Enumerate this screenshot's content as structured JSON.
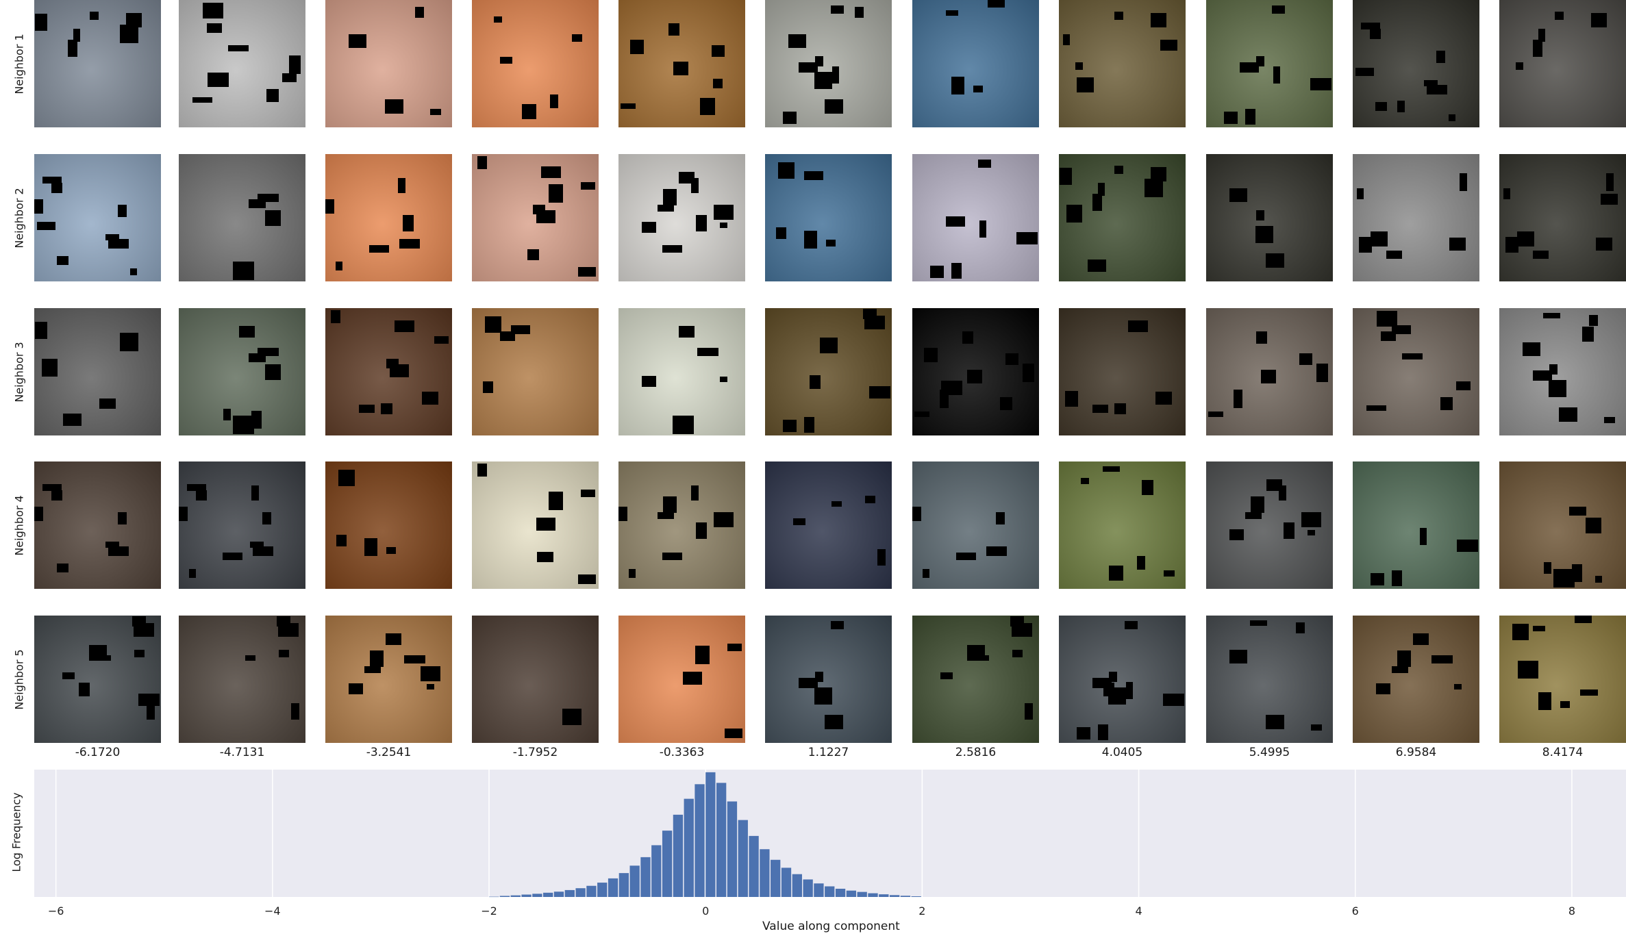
{
  "rows": [
    "Neighbor 1",
    "Neighbor 2",
    "Neighbor 3",
    "Neighbor 4",
    "Neighbor 5"
  ],
  "columns": [
    "-6.1720",
    "-4.7131",
    "-3.2541",
    "-1.7952",
    "-0.3363",
    "1.1227",
    "2.5816",
    "4.0405",
    "5.4995",
    "6.9584",
    "8.4174"
  ],
  "tile_colors": [
    [
      "#7d8896",
      "#bdbdbd",
      "#d9a08a",
      "#e8874f",
      "#a06a2c",
      "#a9aba3",
      "#3f6e96",
      "#6a5b34",
      "#5c6b44",
      "#2f2f28",
      "#4a4844"
    ],
    [
      "#8fa7c2",
      "#6f6f6f",
      "#e8874f",
      "#d9a08a",
      "#d7d5d1",
      "#3f6e96",
      "#b9b4c8",
      "#3b4a2c",
      "#2f2f28",
      "#8a8a8a",
      "#2f2f28"
    ],
    [
      "#5d5d5d",
      "#5e6b5a",
      "#5a3620",
      "#b07a44",
      "#d8dccb",
      "#5e4a22",
      "#000000",
      "#3a2f20",
      "#6d6258",
      "#6d6258",
      "#8a8a8a"
    ],
    [
      "#4e3f35",
      "#3a3e44",
      "#7a3d12",
      "#e5dfc4",
      "#8c8063",
      "#2a3148",
      "#55636b",
      "#6a7a3a",
      "#4d4f50",
      "#4e6a54",
      "#6b5232"
    ],
    [
      "#40464a",
      "#4a4038",
      "#b07a44",
      "#4a3a30",
      "#e8874f",
      "#3d4a55",
      "#3b4a2c",
      "#434a50",
      "#454a4e",
      "#6b5232",
      "#8c7a3c"
    ]
  ],
  "chart_data": {
    "type": "bar",
    "xlabel": "Value along component",
    "ylabel": "Log Frequency",
    "xlim": [
      -6.2,
      8.5
    ],
    "xticks": [
      -6,
      -4,
      -2,
      0,
      2,
      4,
      6,
      8
    ],
    "bar_color": "#4c72b0",
    "grid": true,
    "bins": [
      {
        "x": -1.95,
        "v": 0.1
      },
      {
        "x": -1.85,
        "v": 0.4
      },
      {
        "x": -1.75,
        "v": 0.6
      },
      {
        "x": -1.65,
        "v": 0.9
      },
      {
        "x": -1.55,
        "v": 1.2
      },
      {
        "x": -1.45,
        "v": 1.6
      },
      {
        "x": -1.35,
        "v": 2.0
      },
      {
        "x": -1.25,
        "v": 2.6
      },
      {
        "x": -1.15,
        "v": 3.3
      },
      {
        "x": -1.05,
        "v": 4.2
      },
      {
        "x": -0.95,
        "v": 5.4
      },
      {
        "x": -0.85,
        "v": 7.0
      },
      {
        "x": -0.75,
        "v": 9.0
      },
      {
        "x": -0.65,
        "v": 11.8
      },
      {
        "x": -0.55,
        "v": 15.0
      },
      {
        "x": -0.45,
        "v": 19.5
      },
      {
        "x": -0.35,
        "v": 25.0
      },
      {
        "x": -0.25,
        "v": 31.0
      },
      {
        "x": -0.15,
        "v": 37.0
      },
      {
        "x": -0.05,
        "v": 42.5
      },
      {
        "x": 0.05,
        "v": 47.0
      },
      {
        "x": 0.15,
        "v": 43.0
      },
      {
        "x": 0.25,
        "v": 36.0
      },
      {
        "x": 0.35,
        "v": 29.0
      },
      {
        "x": 0.45,
        "v": 23.0
      },
      {
        "x": 0.55,
        "v": 18.0
      },
      {
        "x": 0.65,
        "v": 14.0
      },
      {
        "x": 0.75,
        "v": 11.0
      },
      {
        "x": 0.85,
        "v": 8.6
      },
      {
        "x": 0.95,
        "v": 6.6
      },
      {
        "x": 1.05,
        "v": 5.1
      },
      {
        "x": 1.15,
        "v": 4.0
      },
      {
        "x": 1.25,
        "v": 3.1
      },
      {
        "x": 1.35,
        "v": 2.4
      },
      {
        "x": 1.45,
        "v": 1.9
      },
      {
        "x": 1.55,
        "v": 1.4
      },
      {
        "x": 1.65,
        "v": 1.0
      },
      {
        "x": 1.75,
        "v": 0.7
      },
      {
        "x": 1.85,
        "v": 0.45
      },
      {
        "x": 1.95,
        "v": 0.25
      }
    ],
    "ylim": [
      0,
      48
    ]
  }
}
